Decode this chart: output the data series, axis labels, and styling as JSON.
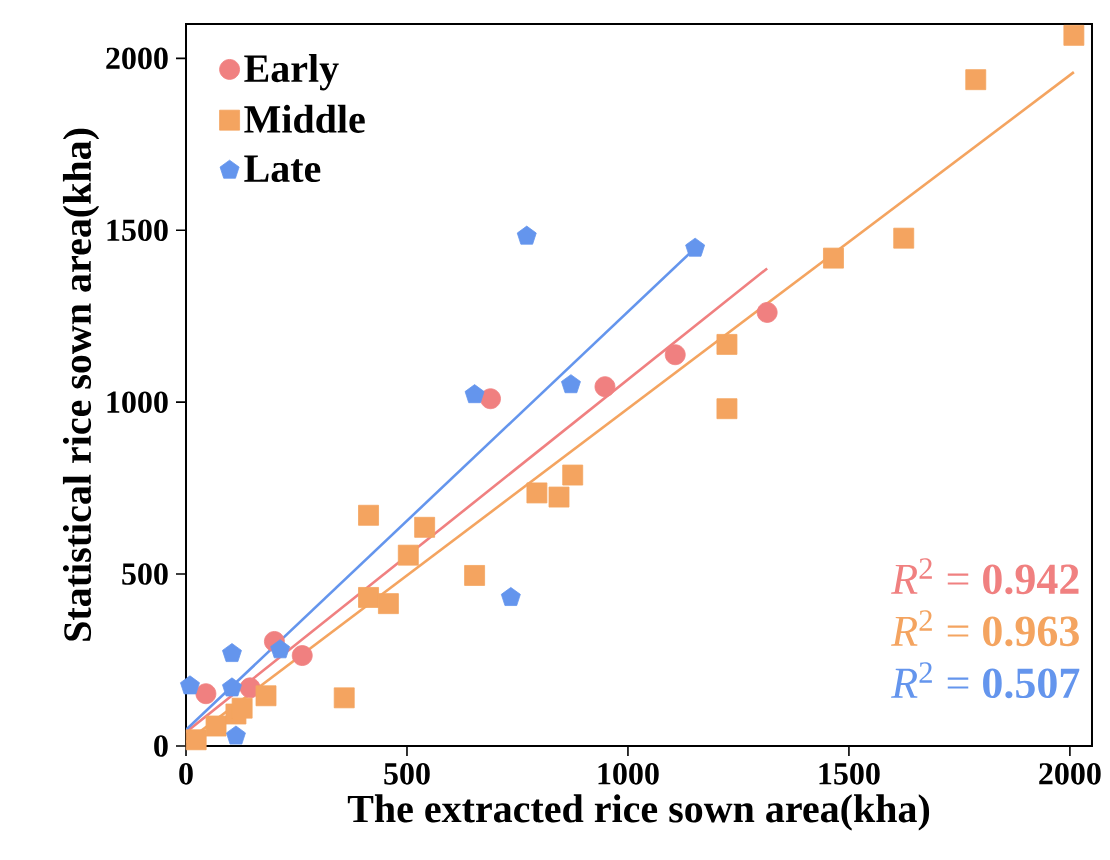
{
  "chart_data": {
    "type": "scatter",
    "xlabel": "The extracted rice sown area(kha)",
    "ylabel": "Statistical rice sown area(kha)",
    "xlim": [
      0,
      2050
    ],
    "ylim": [
      0,
      2100
    ],
    "xticks": [
      0,
      500,
      1000,
      1500,
      2000
    ],
    "yticks": [
      0,
      500,
      1000,
      1500,
      2000
    ],
    "grid": false,
    "legend": "top left",
    "series": [
      {
        "name": "Early",
        "color": "#f08080",
        "marker": "circle",
        "x": [
          45,
          145,
          200,
          263,
          689,
          948,
          1107,
          1315
        ],
        "values": [
          152,
          169,
          304,
          263,
          1010,
          1045,
          1138,
          1261
        ]
      },
      {
        "name": "Middle",
        "color": "#f4a460",
        "marker": "square",
        "x": [
          23,
          68,
          113,
          127,
          181,
          358,
          413,
          458,
          413,
          503,
          540,
          653,
          794,
          844,
          875,
          1224,
          1224,
          1465,
          1624,
          1787,
          2009
        ],
        "values": [
          18,
          58,
          93,
          110,
          146,
          140,
          432,
          414,
          671,
          555,
          636,
          496,
          736,
          724,
          788,
          981,
          1168,
          1419,
          1477,
          1938,
          2067
        ]
      },
      {
        "name": "Late",
        "color": "#6495ed",
        "x": [
          9,
          104,
          104,
          113,
          213,
          653,
          735,
          771,
          871,
          1152
        ],
        "values": [
          175,
          169,
          269,
          29,
          280,
          1022,
          432,
          1483,
          1051,
          1448
        ]
      },
      {
        "type": "line",
        "color": "#f08080",
        "marker": "none",
        "x": [
          0,
          1315
        ],
        "values": [
          40,
          1389
        ]
      },
      {
        "type": "line",
        "color": "#f4a460",
        "marker": "none",
        "x": [
          0,
          2009
        ],
        "values": [
          11,
          1960
        ]
      },
      {
        "type": "line",
        "color": "#6495ed",
        "marker": "none",
        "x": [
          0,
          1152
        ],
        "values": [
          47,
          1448
        ]
      }
    ],
    "annotations": [
      "*R*$^{2}$ = **0.942**",
      "*R*$^{2}$ = **0.963**",
      "*R*$^{2}$ = **0.507**"
    ]
  }
}
